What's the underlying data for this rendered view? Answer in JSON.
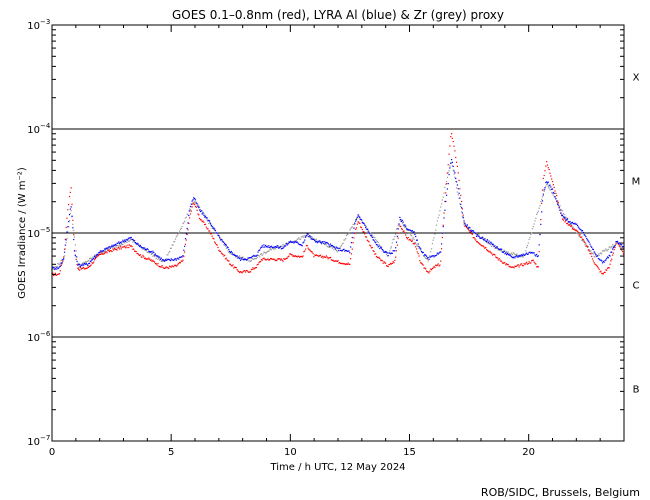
{
  "chart_data": {
    "type": "scatter",
    "title": "GOES 0.1–0.8nm (red), LYRA Al (blue) & Zr (grey) proxy",
    "xlabel": "Time / h UTC, 12 May 2024",
    "ylabel": "GOES Irradiance / (W m⁻²)",
    "xlim": [
      0,
      24
    ],
    "ylim": [
      1e-07,
      0.001
    ],
    "yscale": "log",
    "x_ticks": [
      0,
      5,
      10,
      15,
      20
    ],
    "y_ticks": [
      {
        "value": 1e-07,
        "mantissa": "10",
        "exponent": "−7"
      },
      {
        "value": 1e-06,
        "mantissa": "10",
        "exponent": "−6"
      },
      {
        "value": 1e-05,
        "mantissa": "10",
        "exponent": "−5"
      },
      {
        "value": 0.0001,
        "mantissa": "10",
        "exponent": "−4"
      },
      {
        "value": 0.001,
        "mantissa": "10",
        "exponent": "−3"
      }
    ],
    "reference_lines": [
      1e-06,
      1e-05,
      0.0001
    ],
    "flare_classes": [
      {
        "label": "B",
        "y": 3.2e-07
      },
      {
        "label": "C",
        "y": 3.2e-06
      },
      {
        "label": "M",
        "y": 3.2e-05
      },
      {
        "label": "X",
        "y": 0.00032
      }
    ],
    "series": [
      {
        "name": "GOES 0.1–0.8nm",
        "color": "#ff0000",
        "points": [
          [
            0.0,
            4e-06
          ],
          [
            0.3,
            4e-06
          ],
          [
            0.5,
            6e-06
          ],
          [
            0.65,
            1.6e-05
          ],
          [
            0.8,
            2.8e-05
          ],
          [
            0.95,
            6.5e-06
          ],
          [
            1.1,
            4.5e-06
          ],
          [
            1.5,
            4.6e-06
          ],
          [
            2.0,
            6.2e-06
          ],
          [
            2.5,
            6.8e-06
          ],
          [
            3.0,
            7.3e-06
          ],
          [
            3.3,
            7.5e-06
          ],
          [
            3.7,
            6.1e-06
          ],
          [
            4.2,
            5.4e-06
          ],
          [
            4.7,
            4.6e-06
          ],
          [
            5.2,
            4.8e-06
          ],
          [
            5.5,
            5.4e-06
          ],
          [
            5.8,
            1.5e-05
          ],
          [
            5.95,
            2e-05
          ],
          [
            6.2,
            1.4e-05
          ],
          [
            6.6,
            1.05e-05
          ],
          [
            7.0,
            7e-06
          ],
          [
            7.5,
            5e-06
          ],
          [
            7.9,
            4.2e-06
          ],
          [
            8.3,
            4.3e-06
          ],
          [
            8.6,
            4.8e-06
          ],
          [
            8.8,
            5.6e-06
          ],
          [
            9.3,
            5.6e-06
          ],
          [
            9.7,
            5.5e-06
          ],
          [
            10.0,
            6.2e-06
          ],
          [
            10.3,
            6e-06
          ],
          [
            10.5,
            5.9e-06
          ],
          [
            10.7,
            7.6e-06
          ],
          [
            11.0,
            6e-06
          ],
          [
            11.5,
            5.9e-06
          ],
          [
            12.0,
            5.3e-06
          ],
          [
            12.5,
            5e-06
          ],
          [
            12.7,
            1e-05
          ],
          [
            12.85,
            1.3e-05
          ],
          [
            13.2,
            9e-06
          ],
          [
            13.6,
            6e-06
          ],
          [
            14.1,
            4.8e-06
          ],
          [
            14.4,
            5.4e-06
          ],
          [
            14.6,
            1.2e-05
          ],
          [
            14.9,
            9e-06
          ],
          [
            15.2,
            8e-06
          ],
          [
            15.5,
            5e-06
          ],
          [
            15.8,
            4.2e-06
          ],
          [
            16.1,
            4.8e-06
          ],
          [
            16.3,
            5e-06
          ],
          [
            16.5,
            2.2e-05
          ],
          [
            16.75,
            9.6e-05
          ],
          [
            17.0,
            4.5e-05
          ],
          [
            17.3,
            1.2e-05
          ],
          [
            17.8,
            8.5e-06
          ],
          [
            18.2,
            7.2e-06
          ],
          [
            18.7,
            5.7e-06
          ],
          [
            19.3,
            4.6e-06
          ],
          [
            19.8,
            5e-06
          ],
          [
            20.2,
            5.4e-06
          ],
          [
            20.4,
            4.6e-06
          ],
          [
            20.6,
            3.2e-05
          ],
          [
            20.75,
            4.8e-05
          ],
          [
            21.0,
            3.2e-05
          ],
          [
            21.4,
            1.4e-05
          ],
          [
            21.7,
            1.2e-05
          ],
          [
            22.1,
            1e-05
          ],
          [
            22.5,
            7e-06
          ],
          [
            22.8,
            5e-06
          ],
          [
            23.1,
            4e-06
          ],
          [
            23.4,
            4.8e-06
          ],
          [
            23.7,
            8.5e-06
          ],
          [
            24.0,
            6e-06
          ]
        ]
      },
      {
        "name": "LYRA Al",
        "color": "#0000ff",
        "points": [
          [
            0.0,
            4.6e-06
          ],
          [
            0.3,
            4.6e-06
          ],
          [
            0.5,
            5.8e-06
          ],
          [
            0.65,
            1.1e-05
          ],
          [
            0.8,
            1.9e-05
          ],
          [
            0.95,
            6.5e-06
          ],
          [
            1.1,
            4.9e-06
          ],
          [
            1.5,
            5e-06
          ],
          [
            2.0,
            6.6e-06
          ],
          [
            2.5,
            7.4e-06
          ],
          [
            3.0,
            8.4e-06
          ],
          [
            3.3,
            9e-06
          ],
          [
            3.7,
            7.4e-06
          ],
          [
            4.2,
            6.6e-06
          ],
          [
            4.7,
            5.4e-06
          ],
          [
            5.2,
            5.6e-06
          ],
          [
            5.5,
            6e-06
          ],
          [
            5.8,
            1.8e-05
          ],
          [
            5.95,
            2.2e-05
          ],
          [
            6.2,
            1.65e-05
          ],
          [
            6.6,
            1.3e-05
          ],
          [
            7.0,
            9.2e-06
          ],
          [
            7.5,
            6.6e-06
          ],
          [
            7.9,
            5.6e-06
          ],
          [
            8.3,
            5.7e-06
          ],
          [
            8.6,
            6.2e-06
          ],
          [
            8.8,
            7.5e-06
          ],
          [
            9.3,
            7.4e-06
          ],
          [
            9.7,
            7.2e-06
          ],
          [
            10.0,
            8.3e-06
          ],
          [
            10.3,
            8e-06
          ],
          [
            10.5,
            7.7e-06
          ],
          [
            10.7,
            9.8e-06
          ],
          [
            11.0,
            8.4e-06
          ],
          [
            11.5,
            8e-06
          ],
          [
            12.0,
            7e-06
          ],
          [
            12.5,
            6.6e-06
          ],
          [
            12.7,
            1.2e-05
          ],
          [
            12.85,
            1.5e-05
          ],
          [
            13.2,
            1.1e-05
          ],
          [
            13.6,
            7.8e-06
          ],
          [
            14.1,
            6.2e-06
          ],
          [
            14.4,
            6.8e-06
          ],
          [
            14.6,
            1.4e-05
          ],
          [
            14.9,
            1.1e-05
          ],
          [
            15.2,
            1e-05
          ],
          [
            15.5,
            6.6e-06
          ],
          [
            15.8,
            5.6e-06
          ],
          [
            16.1,
            6.2e-06
          ],
          [
            16.3,
            6.4e-06
          ],
          [
            16.5,
            1.8e-05
          ],
          [
            16.75,
            5.2e-05
          ],
          [
            17.0,
            3e-05
          ],
          [
            17.3,
            1.25e-05
          ],
          [
            17.8,
            9.5e-06
          ],
          [
            18.2,
            8.6e-06
          ],
          [
            18.7,
            7.2e-06
          ],
          [
            19.3,
            5.8e-06
          ],
          [
            19.8,
            6.2e-06
          ],
          [
            20.2,
            6.6e-06
          ],
          [
            20.4,
            5.8e-06
          ],
          [
            20.6,
            2.3e-05
          ],
          [
            20.75,
            3.2e-05
          ],
          [
            21.0,
            2.6e-05
          ],
          [
            21.4,
            1.45e-05
          ],
          [
            21.7,
            1.3e-05
          ],
          [
            22.1,
            1.15e-05
          ],
          [
            22.5,
            8.6e-06
          ],
          [
            22.8,
            6.2e-06
          ],
          [
            23.1,
            5.2e-06
          ],
          [
            23.4,
            6e-06
          ],
          [
            23.7,
            8.4e-06
          ],
          [
            24.0,
            7.2e-06
          ]
        ]
      },
      {
        "name": "Zr",
        "color": "#999999",
        "points": [
          [
            0.0,
            4.4e-06
          ],
          [
            0.5,
            5.6e-06
          ],
          [
            0.8,
            1.7e-05
          ],
          [
            1.1,
            4.7e-06
          ],
          [
            2.0,
            6.4e-06
          ],
          [
            3.3,
            8.6e-06
          ],
          [
            4.7,
            5.2e-06
          ],
          [
            5.8,
            1.7e-05
          ],
          [
            5.95,
            2.1e-05
          ],
          [
            6.6,
            1.25e-05
          ],
          [
            7.5,
            6.3e-06
          ],
          [
            8.3,
            5.4e-06
          ],
          [
            9.3,
            7.1e-06
          ],
          [
            10.7,
            9.4e-06
          ],
          [
            12.0,
            6.7e-06
          ],
          [
            12.85,
            1.45e-05
          ],
          [
            14.1,
            5.9e-06
          ],
          [
            14.6,
            1.35e-05
          ],
          [
            15.8,
            5.3e-06
          ],
          [
            16.75,
            5e-05
          ],
          [
            17.3,
            1.2e-05
          ],
          [
            18.7,
            6.9e-06
          ],
          [
            19.8,
            5.9e-06
          ],
          [
            20.75,
            3e-05
          ],
          [
            21.7,
            1.25e-05
          ],
          [
            22.8,
            5.9e-06
          ],
          [
            23.7,
            8e-06
          ],
          [
            24.0,
            6.9e-06
          ]
        ]
      }
    ]
  },
  "credit": "ROB/SIDC, Brussels, Belgium"
}
